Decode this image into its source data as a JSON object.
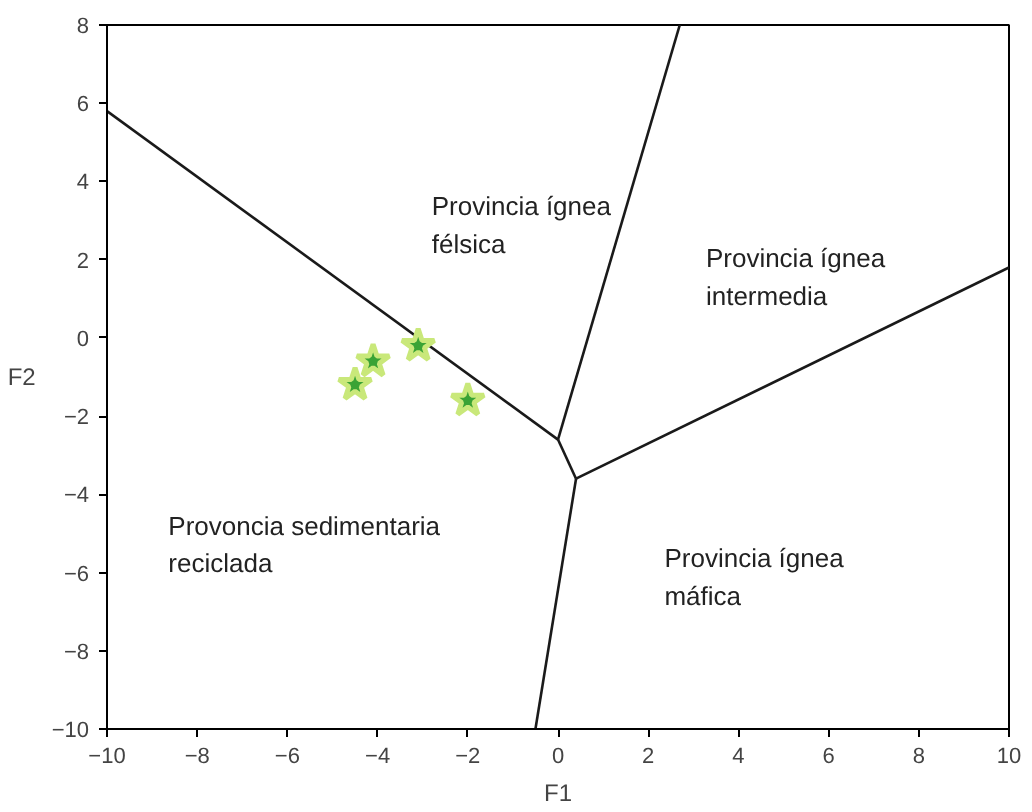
{
  "chart_data": {
    "type": "line",
    "xlabel": "F1",
    "ylabel": "F2",
    "xlim": [
      -10,
      10
    ],
    "ylim": [
      -10,
      8
    ],
    "xticks": [
      -10,
      -8,
      -6,
      -4,
      -2,
      0,
      2,
      4,
      6,
      8,
      10
    ],
    "yticks": [
      -10,
      -8,
      -6,
      -4,
      -2,
      0,
      2,
      4,
      6,
      8
    ],
    "grid": false,
    "series": [
      {
        "color": "#1a1a1a",
        "x": [
          -10,
          0
        ],
        "values": [
          5.8,
          -2.6
        ]
      },
      {
        "color": "#1a1a1a",
        "x": [
          0,
          2.7
        ],
        "values": [
          -2.6,
          8
        ]
      },
      {
        "color": "#1a1a1a",
        "x": [
          0,
          0.4
        ],
        "values": [
          -2.6,
          -3.6
        ]
      },
      {
        "color": "#1a1a1a",
        "x": [
          0.4,
          10
        ],
        "values": [
          -3.6,
          1.8
        ]
      },
      {
        "color": "#1a1a1a",
        "x": [
          0.4,
          -0.5
        ],
        "values": [
          -3.6,
          -10
        ]
      },
      {
        "type": "scatter",
        "color": "#3aa335",
        "marker": "star",
        "x": [
          -4.5,
          -4.1,
          -3.1,
          -2.0
        ],
        "values": [
          -1.2,
          -0.6,
          -0.2,
          -1.6
        ]
      }
    ],
    "annotations": [
      "Provincia ígnea\nfélsica",
      "Provincia ígnea\nintermedia",
      "Provoncia sedimentaria\nreciclada",
      "Provincia ígnea\nmáfica"
    ]
  }
}
